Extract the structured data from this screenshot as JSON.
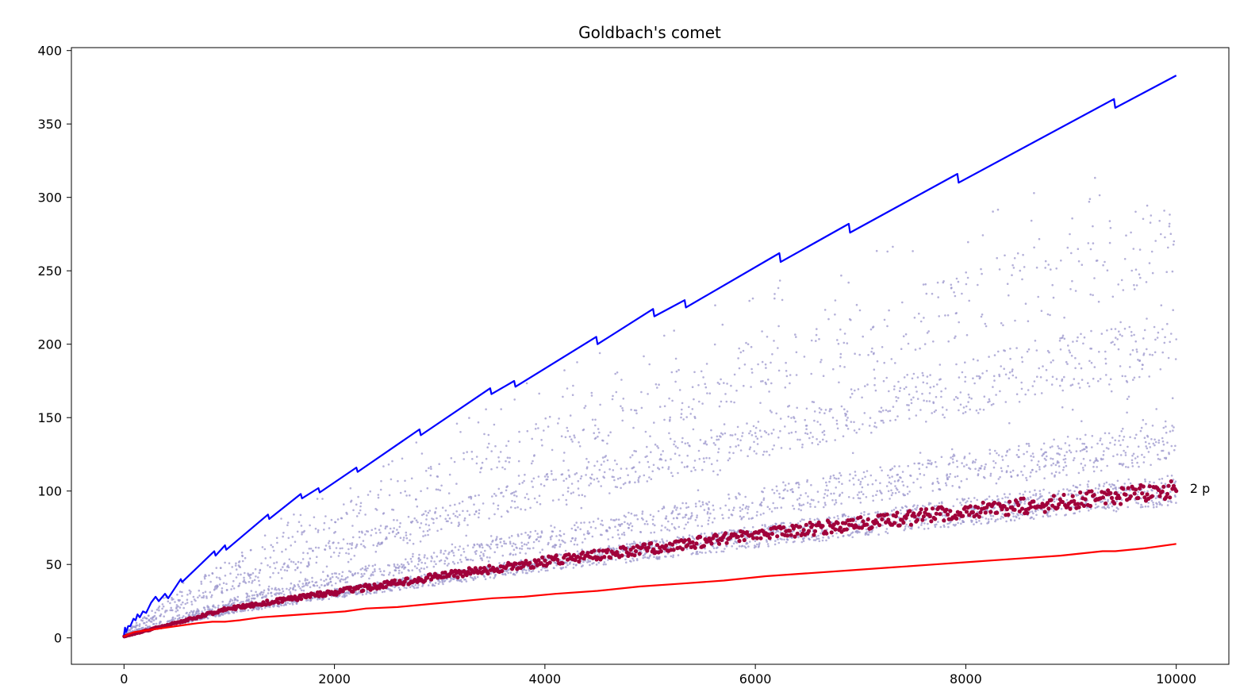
{
  "chart_data": {
    "type": "scatter",
    "title": "Goldbach's comet",
    "xlabel": "",
    "ylabel": "",
    "xlim": [
      -500,
      10500
    ],
    "ylim": [
      -18,
      402
    ],
    "x_ticks": [
      {
        "value": 0,
        "label": "0"
      },
      {
        "value": 2000,
        "label": "2000"
      },
      {
        "value": 4000,
        "label": "4000"
      },
      {
        "value": 6000,
        "label": "6000"
      },
      {
        "value": 8000,
        "label": "8000"
      },
      {
        "value": 10000,
        "label": "10000"
      }
    ],
    "y_ticks": [
      {
        "value": 0,
        "label": "0"
      },
      {
        "value": 50,
        "label": "50"
      },
      {
        "value": 100,
        "label": "100"
      },
      {
        "value": 150,
        "label": "150"
      },
      {
        "value": 200,
        "label": "200"
      },
      {
        "value": 250,
        "label": "250"
      },
      {
        "value": 300,
        "label": "300"
      },
      {
        "value": 350,
        "label": "350"
      },
      {
        "value": 400,
        "label": "400"
      }
    ],
    "grid": false,
    "legend": "none",
    "annotations": [
      {
        "text": "2 p",
        "x": 10130,
        "y": 102
      }
    ],
    "series": [
      {
        "kind": "line",
        "color": "#0000ff",
        "points": [
          [
            0,
            2
          ],
          [
            10,
            7
          ],
          [
            20,
            4
          ],
          [
            40,
            8
          ],
          [
            60,
            8
          ],
          [
            90,
            13
          ],
          [
            110,
            12
          ],
          [
            128,
            16
          ],
          [
            150,
            14
          ],
          [
            180,
            18
          ],
          [
            210,
            17
          ],
          [
            258,
            24
          ],
          [
            300,
            28
          ],
          [
            330,
            25
          ],
          [
            390,
            30
          ],
          [
            420,
            27
          ],
          [
            540,
            40
          ],
          [
            552,
            38
          ],
          [
            858,
            59
          ],
          [
            870,
            56
          ],
          [
            960,
            63
          ],
          [
            972,
            60
          ],
          [
            1368,
            84
          ],
          [
            1380,
            81
          ],
          [
            1680,
            98
          ],
          [
            1692,
            95
          ],
          [
            1848,
            102
          ],
          [
            1860,
            99
          ],
          [
            2208,
            116
          ],
          [
            2220,
            113
          ],
          [
            2808,
            142
          ],
          [
            2820,
            138
          ],
          [
            3480,
            170
          ],
          [
            3492,
            166
          ],
          [
            3708,
            175
          ],
          [
            3720,
            171
          ],
          [
            4488,
            205
          ],
          [
            4500,
            200
          ],
          [
            5028,
            224
          ],
          [
            5040,
            219
          ],
          [
            5328,
            230
          ],
          [
            5340,
            225
          ],
          [
            6228,
            262
          ],
          [
            6240,
            256
          ],
          [
            6888,
            282
          ],
          [
            6900,
            276
          ],
          [
            7920,
            316
          ],
          [
            7932,
            310
          ],
          [
            9408,
            367
          ],
          [
            9420,
            361
          ],
          [
            10000,
            383
          ]
        ]
      },
      {
        "kind": "line",
        "color": "#ff0000",
        "points": [
          [
            0,
            1
          ],
          [
            30,
            2
          ],
          [
            60,
            3
          ],
          [
            100,
            4
          ],
          [
            200,
            5
          ],
          [
            300,
            6
          ],
          [
            400,
            7
          ],
          [
            500,
            8
          ],
          [
            600,
            9
          ],
          [
            700,
            10
          ],
          [
            840,
            11
          ],
          [
            960,
            11
          ],
          [
            1100,
            12
          ],
          [
            1300,
            14
          ],
          [
            1500,
            15
          ],
          [
            1700,
            16
          ],
          [
            1900,
            17
          ],
          [
            2100,
            18
          ],
          [
            2300,
            20
          ],
          [
            2600,
            21
          ],
          [
            2900,
            23
          ],
          [
            3200,
            25
          ],
          [
            3500,
            27
          ],
          [
            3800,
            28
          ],
          [
            4100,
            30
          ],
          [
            4500,
            32
          ],
          [
            4900,
            35
          ],
          [
            5300,
            37
          ],
          [
            5700,
            39
          ],
          [
            6100,
            42
          ],
          [
            6500,
            44
          ],
          [
            6900,
            46
          ],
          [
            7300,
            48
          ],
          [
            7700,
            50
          ],
          [
            8100,
            52
          ],
          [
            8500,
            54
          ],
          [
            8900,
            56
          ],
          [
            9300,
            59
          ],
          [
            9420,
            59
          ],
          [
            9700,
            61
          ],
          [
            10000,
            64
          ]
        ]
      },
      {
        "kind": "scatter-band",
        "name": "2 p",
        "color": "#a0003a",
        "size": "large",
        "x_range": [
          4,
          10000
        ],
        "x_step": 12,
        "y_anchor": [
          [
            0,
            1
          ],
          [
            1000,
            20
          ],
          [
            2000,
            31
          ],
          [
            3000,
            42
          ],
          [
            4000,
            52
          ],
          [
            5000,
            61
          ],
          [
            6000,
            70
          ],
          [
            7000,
            78
          ],
          [
            8000,
            86
          ],
          [
            9000,
            93
          ],
          [
            10000,
            101
          ]
        ],
        "relative_spread": 0.06
      },
      {
        "kind": "scatter-cloud",
        "color": "#9b96cc",
        "size": "small",
        "x_range": [
          4,
          10000
        ],
        "x_step": 2,
        "y_upper": [
          [
            0,
            3
          ],
          [
            500,
            35
          ],
          [
            1000,
            60
          ],
          [
            2000,
            105
          ],
          [
            4000,
            180
          ],
          [
            6000,
            240
          ],
          [
            8000,
            290
          ],
          [
            10000,
            330
          ]
        ],
        "y_lower": [
          [
            0,
            2
          ],
          [
            1000,
            18
          ],
          [
            2000,
            30
          ],
          [
            4000,
            50
          ],
          [
            6000,
            68
          ],
          [
            8000,
            85
          ],
          [
            10000,
            100
          ]
        ],
        "bands": [
          {
            "factor": 1.0,
            "share": 0.45
          },
          {
            "factor": 1.33,
            "share": 0.25
          },
          {
            "factor": 2.0,
            "share": 0.2
          },
          {
            "factor": 2.67,
            "share": 0.1
          }
        ]
      }
    ]
  }
}
